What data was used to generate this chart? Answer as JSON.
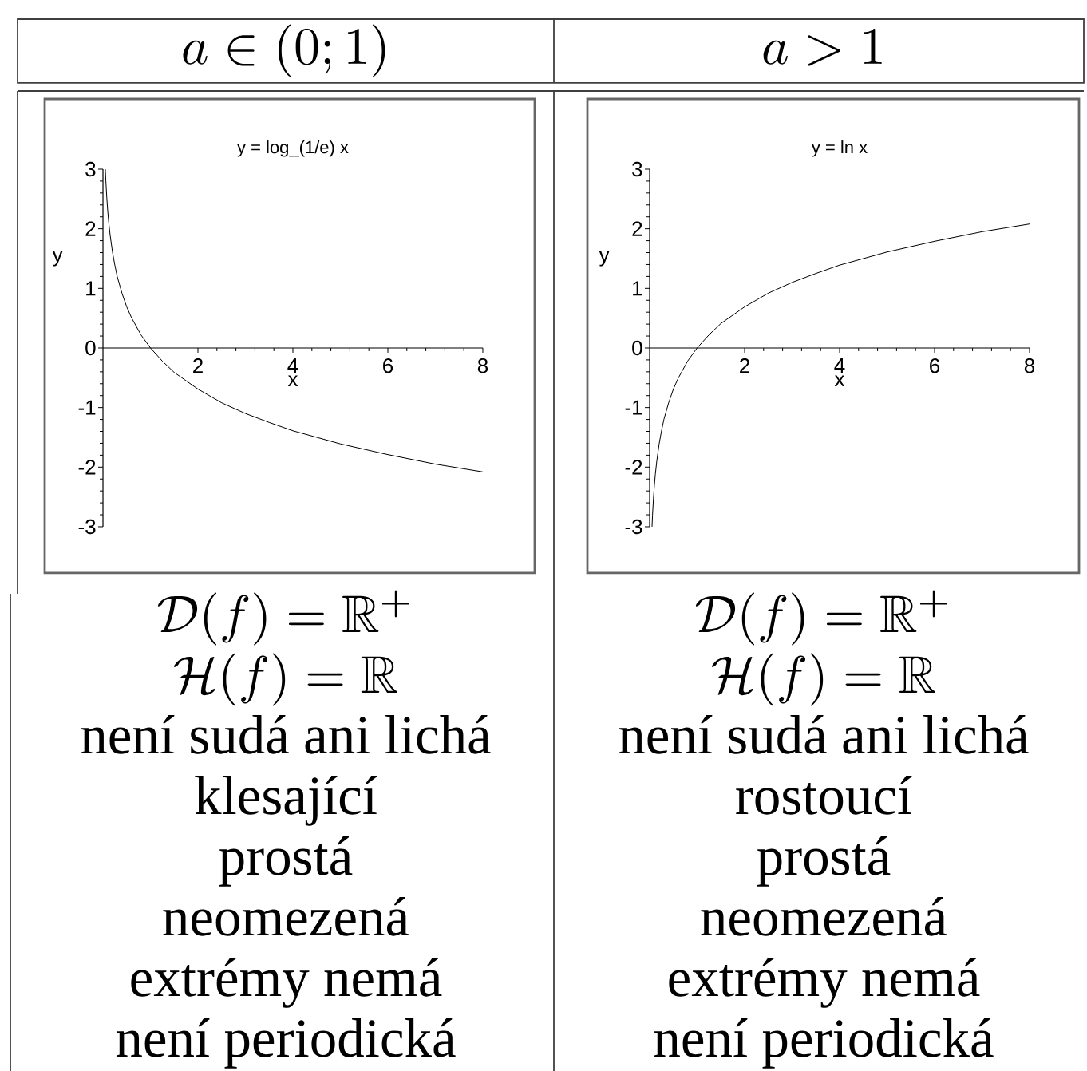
{
  "chart_data": [
    {
      "type": "line",
      "title": "y = log_(1/e) x",
      "xlabel": "x",
      "ylabel": "y",
      "color": "#000000",
      "x": [
        0.05,
        0.06,
        0.08,
        0.1,
        0.12,
        0.15,
        0.2,
        0.25,
        0.3,
        0.4,
        0.5,
        0.6,
        0.8,
        1,
        1.25,
        1.5,
        2,
        2.5,
        3,
        3.5,
        4,
        5,
        6,
        7,
        8
      ],
      "values": [
        3.0,
        2.81,
        2.53,
        2.3,
        2.12,
        1.9,
        1.61,
        1.39,
        1.2,
        0.92,
        0.69,
        0.51,
        0.22,
        0,
        -0.22,
        -0.41,
        -0.69,
        -0.92,
        -1.1,
        -1.25,
        -1.39,
        -1.61,
        -1.79,
        -1.95,
        -2.08
      ],
      "xlim": [
        0,
        8
      ],
      "ylim": [
        -3,
        3
      ],
      "xticks": [
        2,
        4,
        6,
        8
      ],
      "yticks": [
        -3,
        -2,
        -1,
        0,
        1,
        2,
        3
      ],
      "annotations": [
        "a \\in (0;1)",
        "\\mathcal{D}(f) = \\mathbb{R}^+",
        "\\mathcal{H}(f) = \\mathbb{R}",
        "není sudá ani lichá",
        "klesající",
        "prostá",
        "neomezená",
        "extrémy nemá",
        "není periodická"
      ]
    },
    {
      "type": "line",
      "title": "y = ln x",
      "xlabel": "x",
      "ylabel": "y",
      "color": "#000000",
      "x": [
        0.05,
        0.06,
        0.08,
        0.1,
        0.12,
        0.15,
        0.2,
        0.25,
        0.3,
        0.4,
        0.5,
        0.6,
        0.8,
        1,
        1.25,
        1.5,
        2,
        2.5,
        3,
        3.5,
        4,
        5,
        6,
        7,
        8
      ],
      "values": [
        -3.0,
        -2.81,
        -2.53,
        -2.3,
        -2.12,
        -1.9,
        -1.61,
        -1.39,
        -1.2,
        -0.92,
        -0.69,
        -0.51,
        -0.22,
        0,
        0.22,
        0.41,
        0.69,
        0.92,
        1.1,
        1.25,
        1.39,
        1.61,
        1.79,
        1.95,
        2.08
      ],
      "xlim": [
        0,
        8
      ],
      "ylim": [
        -3,
        3
      ],
      "xticks": [
        2,
        4,
        6,
        8
      ],
      "yticks": [
        -3,
        -2,
        -1,
        0,
        1,
        2,
        3
      ],
      "annotations": [
        "a > 1",
        "\\mathcal{D}(f) = \\mathbb{R}^+",
        "\\mathcal{H}(f) = \\mathbb{R}",
        "není sudá ani lichá",
        "rostoucí",
        "prostá",
        "neomezená",
        "extrémy nemá",
        "není periodická"
      ]
    }
  ]
}
